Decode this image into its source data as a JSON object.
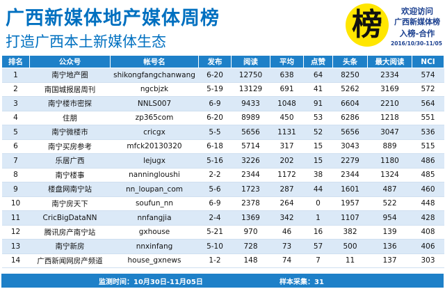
{
  "header": {
    "title": "广西新媒体地产媒体周榜",
    "subtitle": "打造广西本土新媒体生态",
    "badge_char": "榜",
    "promo_line1": "欢迎访问",
    "promo_line2": "广西新媒体榜",
    "promo_line3": "入榜-合作",
    "date_range": "2016/10/30-11/05",
    "colors": {
      "title": "#0070c0",
      "badge": "#ffe600",
      "table_header": "#1e80c8",
      "row_alt": "#dbe9f7"
    }
  },
  "table": {
    "columns": [
      "排名",
      "公众号",
      "帐号名",
      "发布",
      "阅读",
      "平均",
      "点赞",
      "头条",
      "最大阅读",
      "NCI"
    ],
    "rows": [
      [
        "1",
        "南宁地产圈",
        "shikongfangchanwang",
        "6-20",
        "12750",
        "638",
        "64",
        "8250",
        "2334",
        "574"
      ],
      [
        "2",
        "南国城报居周刊",
        "ngcbjzk",
        "5-19",
        "13129",
        "691",
        "41",
        "5262",
        "3169",
        "572"
      ],
      [
        "3",
        "南宁楼市密探",
        "NNLS007",
        "6-9",
        "9433",
        "1048",
        "91",
        "6604",
        "2210",
        "564"
      ],
      [
        "4",
        "住朋",
        "zp365com",
        "6-20",
        "8989",
        "450",
        "53",
        "6286",
        "1218",
        "551"
      ],
      [
        "5",
        "南宁微楼市",
        "cricgx",
        "5-5",
        "5656",
        "1131",
        "52",
        "5656",
        "3047",
        "536"
      ],
      [
        "6",
        "南宁买房参考",
        "mfck20130320",
        "6-18",
        "5714",
        "317",
        "15",
        "3043",
        "889",
        "515"
      ],
      [
        "7",
        "乐居广西",
        "lejugx",
        "5-16",
        "3226",
        "202",
        "15",
        "2279",
        "1180",
        "486"
      ],
      [
        "8",
        "南宁楼事",
        "nanningloushi",
        "2-2",
        "2344",
        "1172",
        "38",
        "2344",
        "1324",
        "485"
      ],
      [
        "9",
        "楼盘网南宁站",
        "nn_loupan_com",
        "5-6",
        "1723",
        "287",
        "44",
        "1601",
        "487",
        "460"
      ],
      [
        "10",
        "南宁房天下",
        "soufun_nn",
        "6-9",
        "2378",
        "264",
        "0",
        "1957",
        "522",
        "448"
      ],
      [
        "11",
        "CricBigDataNN",
        "nnfangjia",
        "2-4",
        "1369",
        "342",
        "1",
        "1107",
        "954",
        "428"
      ],
      [
        "12",
        "腾讯房产南宁站",
        "gxhouse",
        "5-21",
        "970",
        "46",
        "16",
        "382",
        "139",
        "408"
      ],
      [
        "13",
        "南宁新房",
        "nnxinfang",
        "5-10",
        "728",
        "73",
        "57",
        "500",
        "136",
        "406"
      ],
      [
        "14",
        "广西新闻网房产频道",
        "house_gxnews",
        "1-2",
        "148",
        "74",
        "7",
        "11",
        "137",
        "303"
      ]
    ]
  },
  "footer": {
    "period": "监测时间：10月30日-11月05日",
    "sample": "样本采集：31"
  }
}
